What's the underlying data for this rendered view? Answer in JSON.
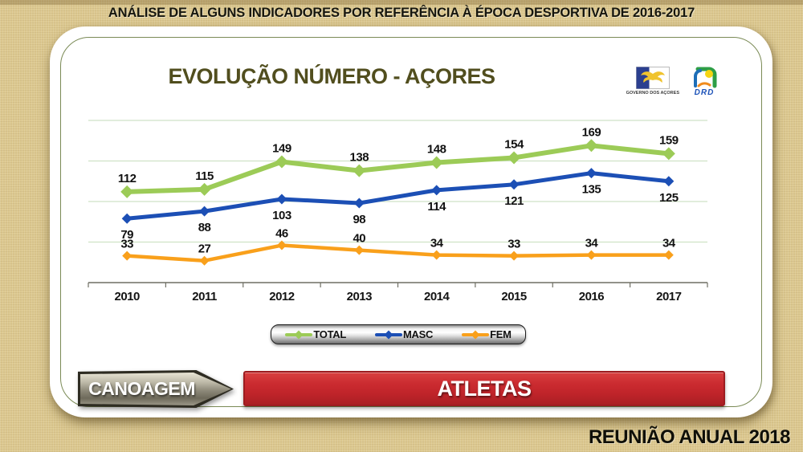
{
  "page": {
    "header_title": "ANÁLISE DE ALGUNS INDICADORES POR REFERÊNCIA À ÉPOCA DESPORTIVA DE 2016-2017",
    "footer_text": "REUNIÃO ANUAL 2018"
  },
  "card": {
    "title": "EVOLUÇÃO NÚMERO - AÇORES",
    "logos": {
      "governo": {
        "caption": "GOVERNO DOS AÇORES"
      },
      "drd": {
        "caption": "DRD"
      }
    }
  },
  "buttons": {
    "sport": "CANOAGEM",
    "metric": "ATLETAS"
  },
  "chart_data": {
    "type": "line",
    "title": "EVOLUÇÃO NÚMERO - AÇORES",
    "categories": [
      "2010",
      "2011",
      "2012",
      "2013",
      "2014",
      "2015",
      "2016",
      "2017"
    ],
    "series": [
      {
        "name": "TOTAL",
        "color": "#9CCB57",
        "values": [
          112,
          115,
          149,
          138,
          148,
          154,
          169,
          159
        ]
      },
      {
        "name": "MASC",
        "color": "#1C4FB5",
        "values": [
          79,
          88,
          103,
          98,
          114,
          121,
          135,
          125
        ]
      },
      {
        "name": "FEM",
        "color": "#F9A01B",
        "values": [
          33,
          27,
          46,
          40,
          34,
          33,
          34,
          34
        ]
      }
    ],
    "xlabel": "",
    "ylabel": "",
    "ylim": [
      0,
      200
    ],
    "gridline_values": [
      50,
      100,
      150,
      200
    ],
    "grid": true,
    "legend_position": "bottom",
    "marker": "diamond",
    "colors": {
      "gridline": "#CFE2C6",
      "axis": "#6F6F64",
      "data_label": "#111111"
    }
  }
}
